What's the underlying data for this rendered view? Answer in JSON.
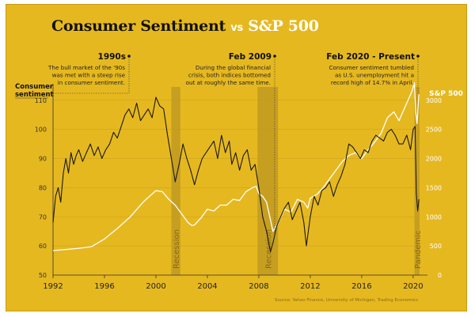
{
  "title": {
    "part1": "Consumer Sentiment",
    "vs": "vs",
    "part2": "S&P 500"
  },
  "annotations": [
    {
      "heading": "1990s",
      "lines": [
        "The bull market of the '90s",
        "was met with a steep rise",
        "in consumer sentiment."
      ]
    },
    {
      "heading": "Feb 2009",
      "lines": [
        "During the global financial",
        "crisis, both indices bottomed",
        "out at roughly the same time."
      ]
    },
    {
      "heading": "Feb 2020 - Present",
      "lines": [
        "Consumer sentiment tumbled",
        "as U.S. unemployment hit a",
        "record high of 14.7% in April."
      ]
    }
  ],
  "source": "Source: Yahoo Finance, University of Michigan, Trading Economics",
  "colors": {
    "background": "#e6b820",
    "sentiment_line": "#1a1a1a",
    "sp500_line": "#ffffff",
    "band": "#bf9a22"
  },
  "chart_data": {
    "type": "line",
    "xlabel": "",
    "left_axis_label": [
      "Consumer",
      "sentiment"
    ],
    "right_axis_label": "S&P 500",
    "x_ticks": [
      1992,
      1996,
      2000,
      2004,
      2008,
      2012,
      2016,
      2020
    ],
    "xlim": [
      1992,
      2020.5
    ],
    "left_ticks": [
      50,
      60,
      70,
      80,
      90,
      100,
      110
    ],
    "left_ylim": [
      50,
      114
    ],
    "right_ticks": [
      0,
      500,
      1000,
      1500,
      2000,
      2500,
      3000
    ],
    "right_ylim": [
      0,
      3200
    ],
    "grid": "horizontal",
    "shaded_periods": [
      {
        "label": "Recession",
        "start": 2001.2,
        "end": 2001.9
      },
      {
        "label": "Recession",
        "start": 2007.9,
        "end": 2009.5
      },
      {
        "label": "Pandemic",
        "start": 2020.1,
        "end": 2020.5
      }
    ],
    "series": [
      {
        "name": "Consumer sentiment",
        "axis": "left",
        "x": [
          1992.0,
          1992.2,
          1992.4,
          1992.6,
          1992.8,
          1993.0,
          1993.2,
          1993.4,
          1993.6,
          1993.8,
          1994.0,
          1994.3,
          1994.6,
          1994.9,
          1995.2,
          1995.5,
          1995.8,
          1996.1,
          1996.4,
          1996.7,
          1997.0,
          1997.3,
          1997.6,
          1997.9,
          1998.2,
          1998.5,
          1998.8,
          1999.1,
          1999.4,
          1999.7,
          2000.0,
          2000.3,
          2000.6,
          2000.9,
          2001.2,
          2001.5,
          2001.8,
          2002.1,
          2002.4,
          2002.7,
          2003.0,
          2003.3,
          2003.6,
          2003.9,
          2004.2,
          2004.5,
          2004.8,
          2005.1,
          2005.4,
          2005.7,
          2005.9,
          2006.2,
          2006.5,
          2006.8,
          2007.1,
          2007.4,
          2007.7,
          2008.0,
          2008.3,
          2008.6,
          2008.9,
          2009.1,
          2009.4,
          2009.7,
          2010.0,
          2010.3,
          2010.6,
          2010.9,
          2011.2,
          2011.5,
          2011.7,
          2012.0,
          2012.3,
          2012.6,
          2012.9,
          2013.2,
          2013.5,
          2013.8,
          2014.1,
          2014.4,
          2014.7,
          2015.0,
          2015.3,
          2015.6,
          2015.9,
          2016.2,
          2016.5,
          2016.8,
          2017.1,
          2017.4,
          2017.7,
          2018.0,
          2018.3,
          2018.6,
          2018.9,
          2019.2,
          2019.5,
          2019.8,
          2020.0,
          2020.15,
          2020.25,
          2020.35,
          2020.45
        ],
        "values": [
          68,
          77,
          80,
          75,
          85,
          90,
          85,
          92,
          88,
          91,
          93,
          89,
          92,
          95,
          91,
          94,
          90,
          93,
          95,
          99,
          97,
          101,
          105,
          107,
          104,
          109,
          103,
          105,
          107,
          104,
          111,
          108,
          107,
          98,
          90,
          82,
          88,
          95,
          90,
          86,
          81,
          86,
          90,
          92,
          94,
          96,
          90,
          98,
          92,
          96,
          88,
          92,
          86,
          91,
          93,
          86,
          88,
          80,
          70,
          65,
          58,
          61,
          67,
          70,
          73,
          75,
          69,
          72,
          75,
          68,
          60,
          70,
          77,
          74,
          79,
          80,
          82,
          77,
          81,
          84,
          88,
          95,
          94,
          92,
          90,
          93,
          92,
          96,
          98,
          97,
          96,
          99,
          100,
          98,
          95,
          95,
          98,
          93,
          100,
          101,
          78,
          72,
          76
        ]
      },
      {
        "name": "S&P 500",
        "axis": "right",
        "x": [
          1992.0,
          1993.0,
          1994.0,
          1995.0,
          1996.0,
          1997.0,
          1998.0,
          1999.0,
          1999.5,
          2000.0,
          2000.5,
          2001.0,
          2001.5,
          2002.0,
          2002.5,
          2002.8,
          2003.0,
          2003.5,
          2004.0,
          2004.5,
          2005.0,
          2005.5,
          2006.0,
          2006.5,
          2007.0,
          2007.5,
          2007.8,
          2008.0,
          2008.3,
          2008.6,
          2008.9,
          2009.1,
          2009.5,
          2010.0,
          2010.5,
          2011.0,
          2011.5,
          2011.8,
          2012.0,
          2012.5,
          2013.0,
          2013.5,
          2014.0,
          2014.5,
          2015.0,
          2015.5,
          2016.0,
          2016.5,
          2017.0,
          2017.5,
          2018.0,
          2018.5,
          2018.9,
          2019.2,
          2019.5,
          2019.9,
          2020.1,
          2020.2,
          2020.3,
          2020.45
        ],
        "values": [
          420,
          440,
          460,
          490,
          620,
          800,
          1000,
          1250,
          1350,
          1450,
          1430,
          1300,
          1200,
          1050,
          900,
          850,
          860,
          980,
          1130,
          1100,
          1200,
          1200,
          1300,
          1280,
          1430,
          1500,
          1520,
          1400,
          1350,
          1250,
          950,
          750,
          900,
          1130,
          1080,
          1300,
          1250,
          1150,
          1320,
          1380,
          1500,
          1650,
          1800,
          1950,
          2050,
          2100,
          2000,
          2150,
          2280,
          2430,
          2700,
          2800,
          2650,
          2800,
          2950,
          3150,
          3300,
          2800,
          2600,
          3100
        ]
      }
    ]
  }
}
